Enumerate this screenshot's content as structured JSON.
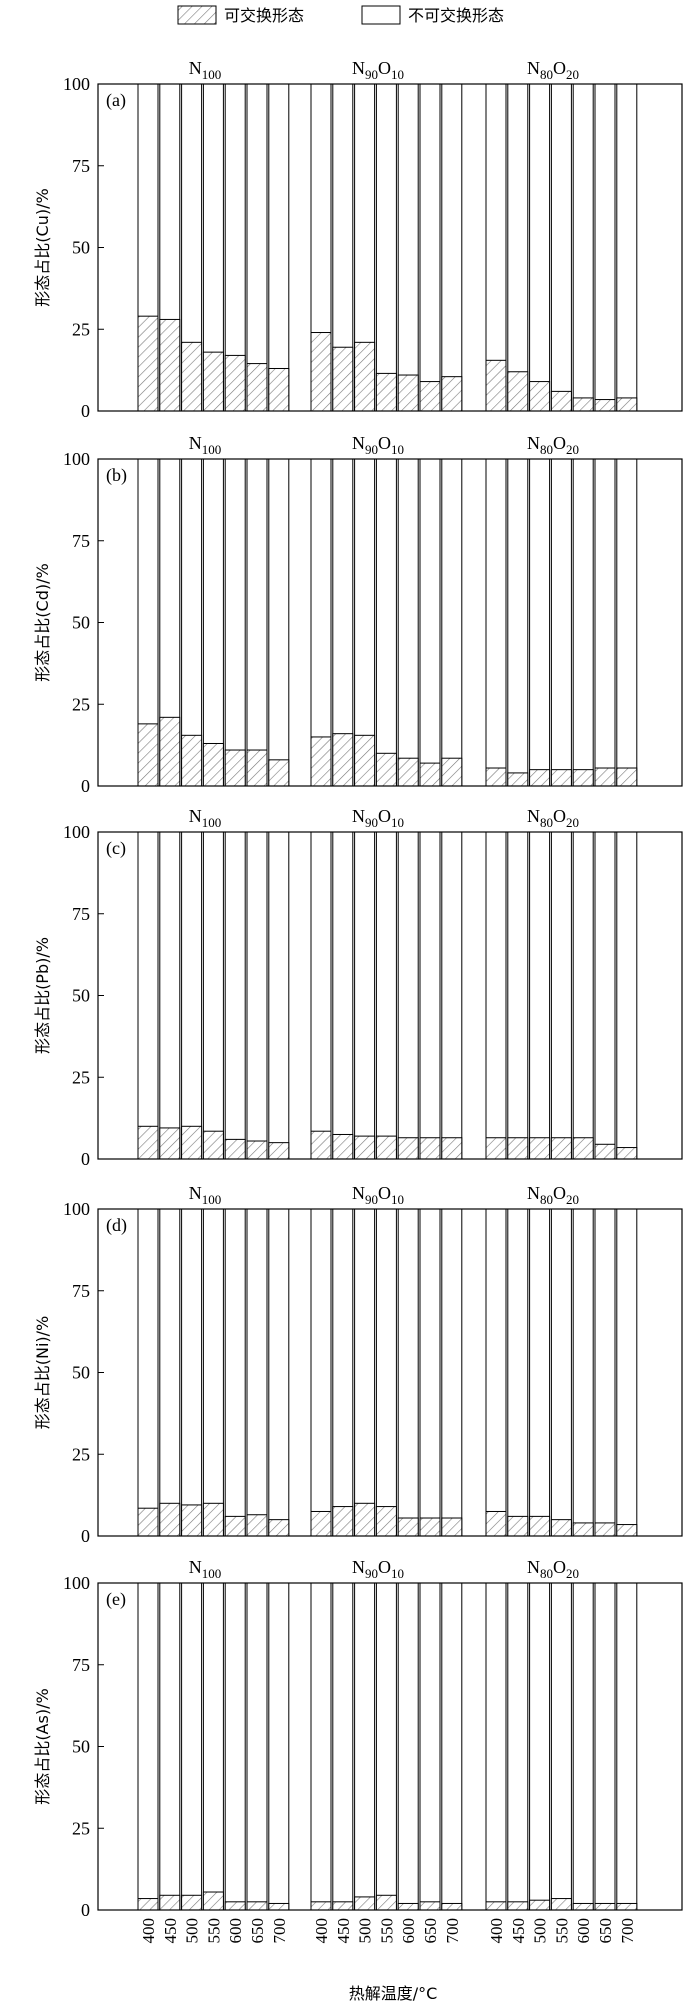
{
  "legend": {
    "items": [
      {
        "label": "可交换形态",
        "pattern": "hatched"
      },
      {
        "label": "不可交换形态",
        "pattern": "empty"
      }
    ]
  },
  "groups": [
    {
      "base": "N",
      "base_sub": "100",
      "second": "",
      "second_sub": ""
    },
    {
      "base": "N",
      "base_sub": "90",
      "second": "O",
      "second_sub": "10"
    },
    {
      "base": "N",
      "base_sub": "80",
      "second": "O",
      "second_sub": "20"
    }
  ],
  "xlabel": "热解温度/°C",
  "temperatures": [
    "400",
    "450",
    "500",
    "550",
    "600",
    "650",
    "700"
  ],
  "colors": {
    "stroke": "#000000",
    "hatch": "#7a7a7a",
    "fill": "#ffffff"
  },
  "chart_data": [
    {
      "type": "bar",
      "stacked": true,
      "panel": "(a)",
      "ylabel": "形态占比(Cu)/%",
      "ylim": [
        0,
        100
      ],
      "yticks": [
        0,
        25,
        50,
        75,
        100
      ],
      "series": [
        {
          "name": "可交换形态",
          "values": [
            [
              29,
              28,
              21,
              18,
              17,
              14.5,
              13
            ],
            [
              24,
              19.5,
              21,
              11.5,
              11,
              9,
              10.5
            ],
            [
              15.5,
              12,
              9,
              6,
              4,
              3.5,
              4
            ]
          ]
        },
        {
          "name": "不可交换形态",
          "values": [
            [
              71,
              72,
              79,
              82,
              83,
              85.5,
              87
            ],
            [
              76,
              80.5,
              79,
              88.5,
              89,
              91,
              89.5
            ],
            [
              84.5,
              88,
              91,
              94,
              96,
              96.5,
              96
            ]
          ]
        }
      ]
    },
    {
      "type": "bar",
      "stacked": true,
      "panel": "(b)",
      "ylabel": "形态占比(Cd)/%",
      "ylim": [
        0,
        100
      ],
      "yticks": [
        0,
        25,
        50,
        75,
        100
      ],
      "series": [
        {
          "name": "可交换形态",
          "values": [
            [
              19,
              21,
              15.5,
              13,
              11,
              11,
              8
            ],
            [
              15,
              16,
              15.5,
              10,
              8.5,
              7,
              8.5
            ],
            [
              5.5,
              4,
              5,
              5,
              5,
              5.5,
              5.5
            ]
          ]
        },
        {
          "name": "不可交换形态",
          "values": [
            [
              81,
              79,
              84.5,
              87,
              89,
              89,
              92
            ],
            [
              85,
              84,
              84.5,
              90,
              91.5,
              93,
              91.5
            ],
            [
              94.5,
              96,
              95,
              95,
              95,
              94.5,
              94.5
            ]
          ]
        }
      ]
    },
    {
      "type": "bar",
      "stacked": true,
      "panel": "(c)",
      "ylabel": "形态占比(Pb)/%",
      "ylim": [
        0,
        100
      ],
      "yticks": [
        0,
        25,
        50,
        75,
        100
      ],
      "series": [
        {
          "name": "可交换形态",
          "values": [
            [
              10,
              9.5,
              10,
              8.5,
              6,
              5.5,
              5
            ],
            [
              8.5,
              7.5,
              7,
              7,
              6.5,
              6.5,
              6.5
            ],
            [
              6.5,
              6.5,
              6.5,
              6.5,
              6.5,
              4.5,
              3.5
            ]
          ]
        },
        {
          "name": "不可交换形态",
          "values": [
            [
              90,
              90.5,
              90,
              91.5,
              94,
              94.5,
              95
            ],
            [
              91.5,
              92.5,
              93,
              93,
              93.5,
              93.5,
              93.5
            ],
            [
              93.5,
              93.5,
              93.5,
              93.5,
              93.5,
              95.5,
              96.5
            ]
          ]
        }
      ]
    },
    {
      "type": "bar",
      "stacked": true,
      "panel": "(d)",
      "ylabel": "形态占比(Ni)/%",
      "ylim": [
        0,
        100
      ],
      "yticks": [
        0,
        25,
        50,
        75,
        100
      ],
      "series": [
        {
          "name": "可交换形态",
          "values": [
            [
              8.5,
              10,
              9.5,
              10,
              6,
              6.5,
              5
            ],
            [
              7.5,
              9,
              10,
              9,
              5.5,
              5.5,
              5.5
            ],
            [
              7.5,
              6,
              6,
              5,
              4,
              4,
              3.5
            ]
          ]
        },
        {
          "name": "不可交换形态",
          "values": [
            [
              91.5,
              90,
              90.5,
              90,
              94,
              93.5,
              95
            ],
            [
              92.5,
              91,
              90,
              91,
              94.5,
              94.5,
              94.5
            ],
            [
              92.5,
              94,
              94,
              95,
              96,
              96,
              96.5
            ]
          ]
        }
      ]
    },
    {
      "type": "bar",
      "stacked": true,
      "panel": "(e)",
      "ylabel": "形态占比(As)/%",
      "ylim": [
        0,
        100
      ],
      "yticks": [
        0,
        25,
        50,
        75,
        100
      ],
      "series": [
        {
          "name": "可交换形态",
          "values": [
            [
              3.5,
              4.5,
              4.5,
              5.5,
              2.5,
              2.5,
              2
            ],
            [
              2.5,
              2.5,
              4,
              4.5,
              2,
              2.5,
              2
            ],
            [
              2.5,
              2.5,
              3,
              3.5,
              2,
              2,
              2
            ]
          ]
        },
        {
          "name": "不可交换形态",
          "values": [
            [
              96.5,
              95.5,
              95.5,
              94.5,
              97.5,
              97.5,
              98
            ],
            [
              97.5,
              97.5,
              96,
              95.5,
              98,
              97.5,
              98
            ],
            [
              97.5,
              97.5,
              97,
              96.5,
              98,
              98,
              98
            ]
          ]
        }
      ]
    }
  ]
}
